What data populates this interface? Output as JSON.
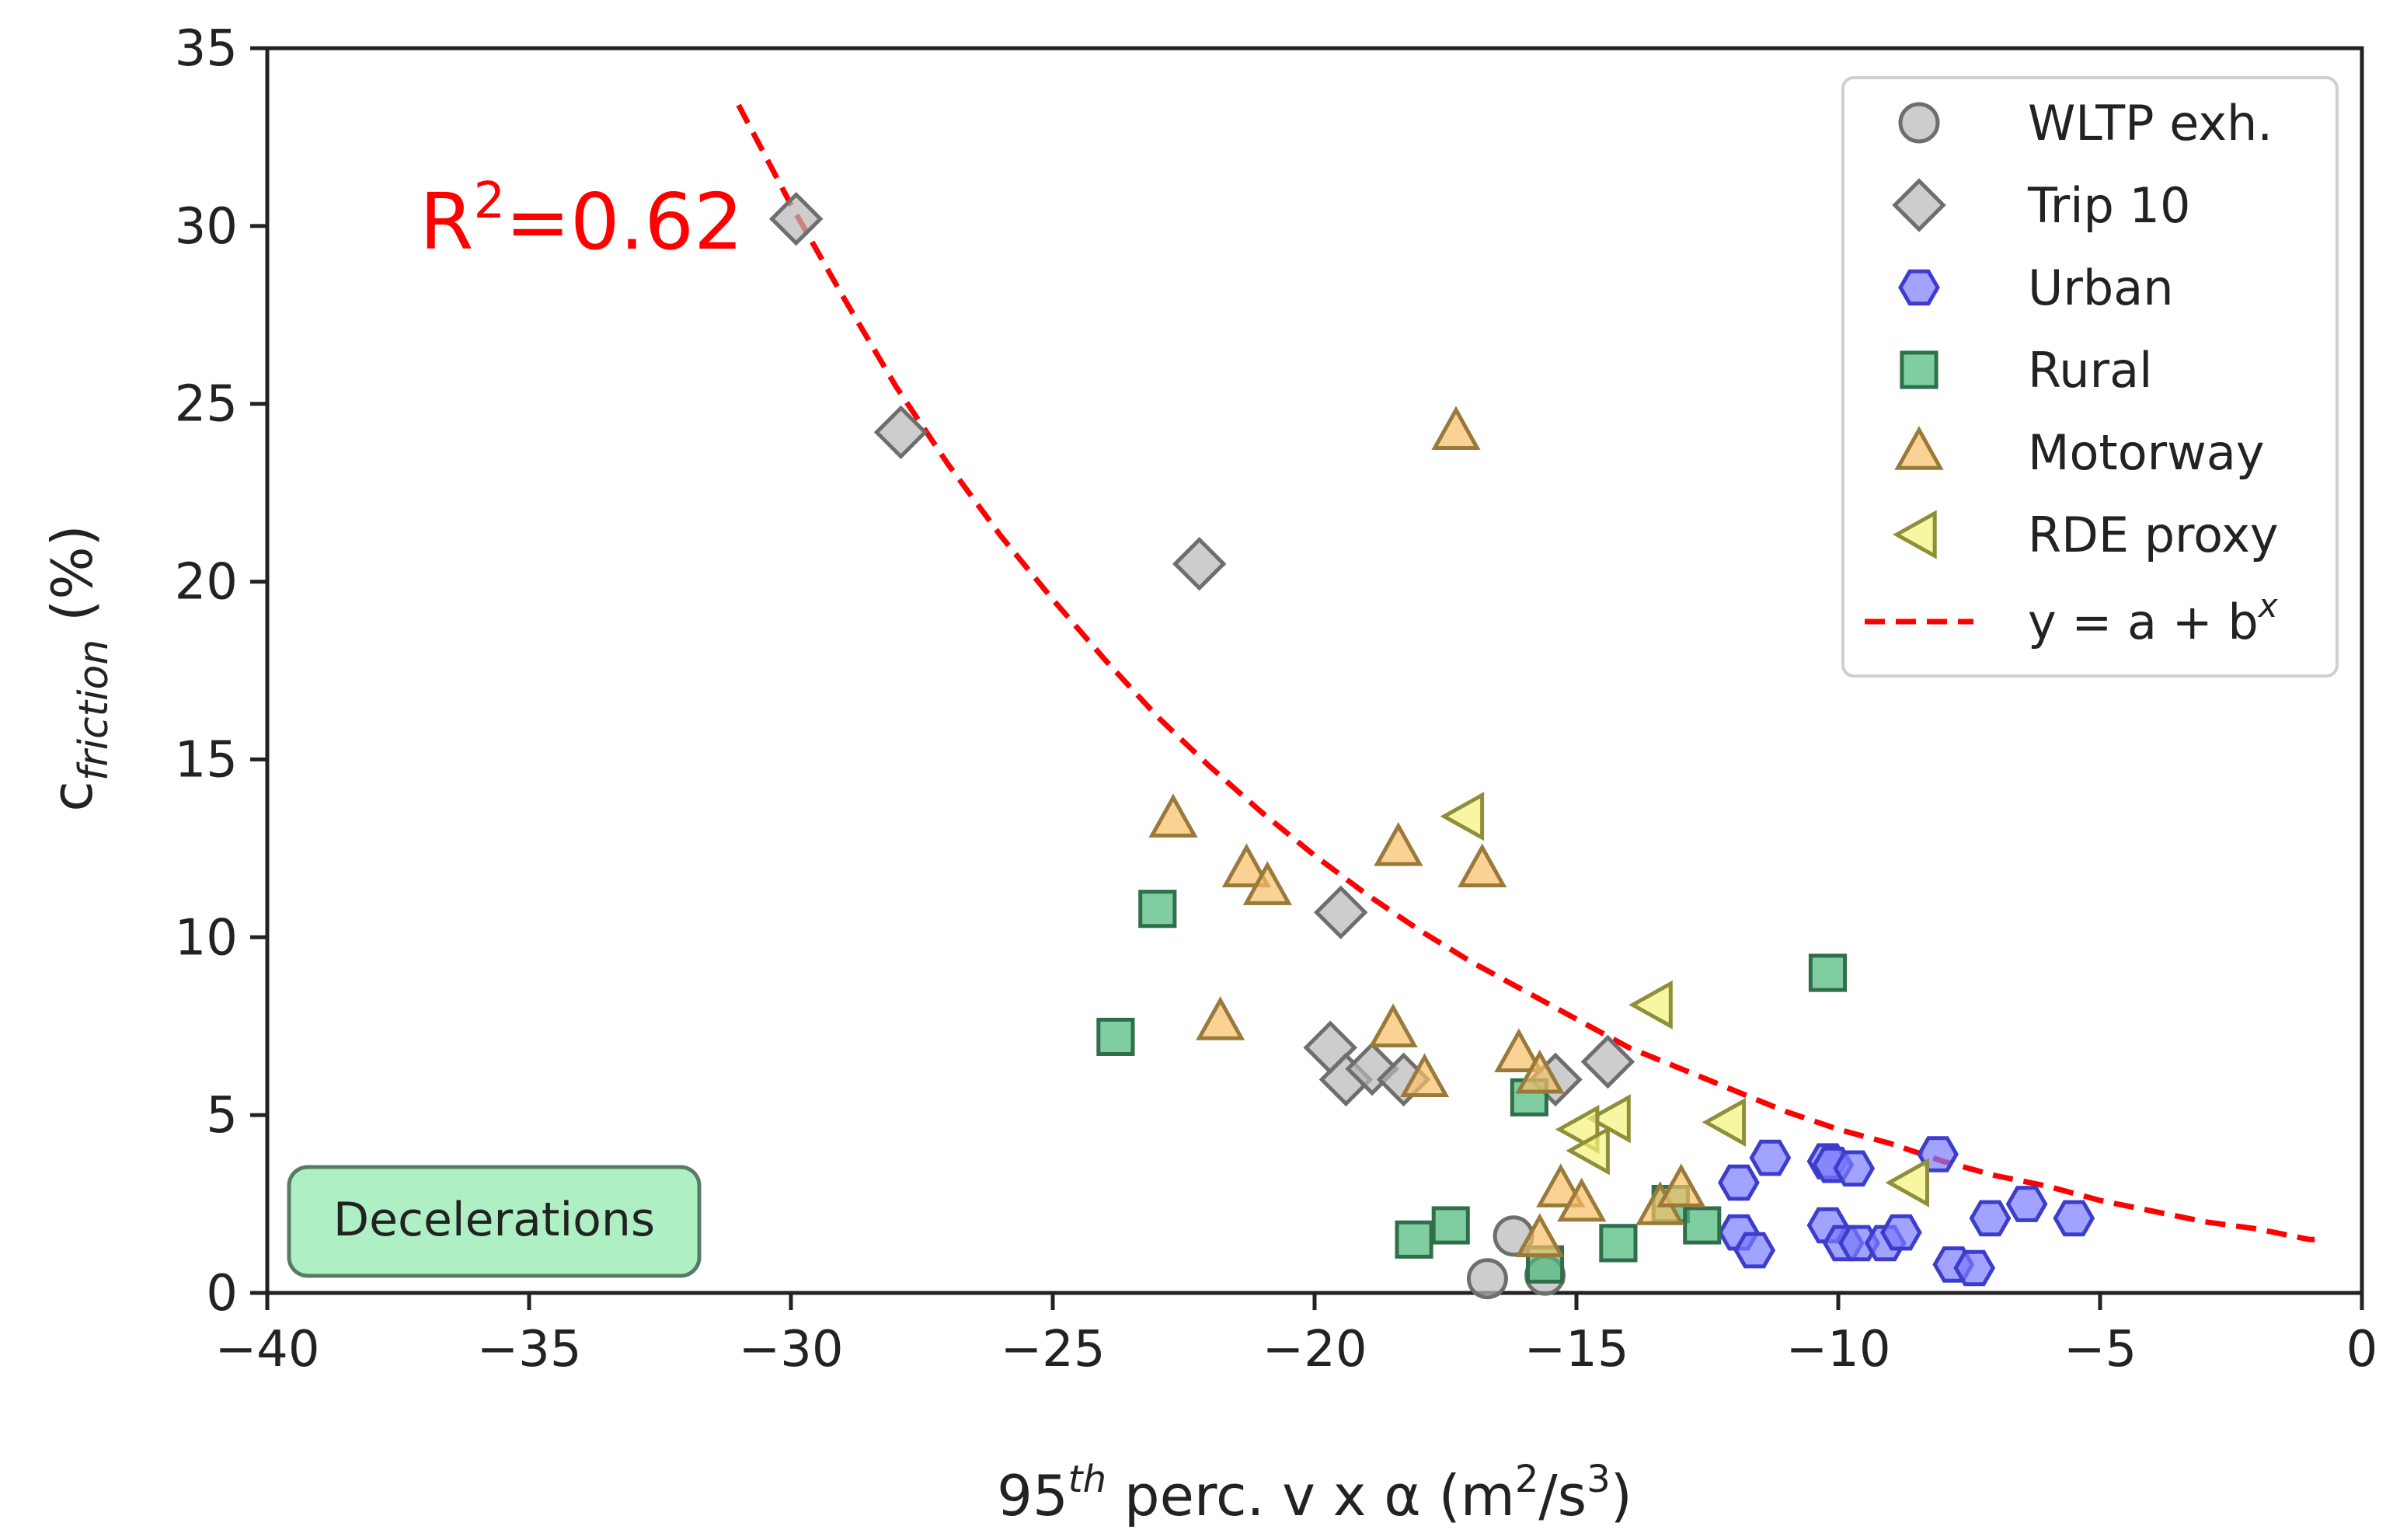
{
  "chart_data": {
    "type": "scatter",
    "xlabel": {
      "base": "95",
      "sup": "th",
      "rest": " perc. v x α (m",
      "sup2": "2",
      "mid": "/s",
      "sup3": "3",
      "end": ")"
    },
    "ylabel": {
      "main": "c",
      "sub": "friction",
      "rest": " (%)"
    },
    "xlim": [
      -40,
      0
    ],
    "ylim": [
      0,
      35
    ],
    "xticks": [
      -40,
      -35,
      -30,
      -25,
      -20,
      -15,
      -10,
      -5,
      0
    ],
    "xtick_labels": [
      "−40",
      "−35",
      "−30",
      "−25",
      "−20",
      "−15",
      "−10",
      "−5",
      "0"
    ],
    "yticks": [
      0,
      5,
      10,
      15,
      20,
      25,
      30,
      35
    ],
    "ytick_labels": [
      "0",
      "5",
      "10",
      "15",
      "20",
      "25",
      "30",
      "35"
    ],
    "grid": false,
    "legend_position": "top-right",
    "annotation": {
      "text_main": "R",
      "text_sup": "2",
      "text_rest": "=0.62",
      "color": "#ff0000"
    },
    "badge": {
      "text": "Deceleration s",
      "label": "Decelerations",
      "fill": "#aef0c4",
      "stroke": "#5a7a66"
    },
    "series": [
      {
        "name": "WLTP exh.",
        "marker": "circle",
        "fill": "#b8b8b8",
        "stroke": "#6e6e6e",
        "points": [
          [
            -16.7,
            0.4
          ],
          [
            -16.2,
            1.6
          ],
          [
            -15.6,
            0.5
          ]
        ]
      },
      {
        "name": "Trip 10",
        "marker": "diamond",
        "fill": "#b8b8b8",
        "stroke": "#6e6e6e",
        "points": [
          [
            -29.9,
            30.2
          ],
          [
            -27.9,
            24.2
          ],
          [
            -22.2,
            20.5
          ],
          [
            -19.5,
            10.7
          ],
          [
            -19.7,
            6.9
          ],
          [
            -19.4,
            6.0
          ],
          [
            -18.9,
            6.3
          ],
          [
            -18.3,
            6.0
          ],
          [
            -15.4,
            6.0
          ],
          [
            -14.4,
            6.5
          ]
        ]
      },
      {
        "name": "Urban",
        "marker": "hexagon",
        "fill": "#7b7bff",
        "stroke": "#3d3dcc",
        "points": [
          [
            -11.9,
            3.1
          ],
          [
            -11.3,
            3.8
          ],
          [
            -10.2,
            3.7
          ],
          [
            -10.1,
            3.6
          ],
          [
            -9.7,
            3.5
          ],
          [
            -8.1,
            3.9
          ],
          [
            -11.9,
            1.7
          ],
          [
            -11.6,
            1.2
          ],
          [
            -10.2,
            1.9
          ],
          [
            -9.9,
            1.4
          ],
          [
            -9.6,
            1.4
          ],
          [
            -9.1,
            1.4
          ],
          [
            -8.8,
            1.7
          ],
          [
            -7.8,
            0.8
          ],
          [
            -7.4,
            0.7
          ],
          [
            -7.1,
            2.1
          ],
          [
            -6.4,
            2.5
          ],
          [
            -5.5,
            2.1
          ]
        ]
      },
      {
        "name": "Rural",
        "marker": "square",
        "fill": "#4cb87a",
        "stroke": "#2f6f4a",
        "points": [
          [
            -23.8,
            7.2
          ],
          [
            -23.0,
            10.8
          ],
          [
            -18.1,
            1.5
          ],
          [
            -17.4,
            1.9
          ],
          [
            -15.9,
            5.5
          ],
          [
            -15.6,
            0.8
          ],
          [
            -14.2,
            1.4
          ],
          [
            -13.2,
            2.5
          ],
          [
            -12.6,
            1.9
          ],
          [
            -10.2,
            9.0
          ]
        ]
      },
      {
        "name": "Motorway",
        "marker": "triangle-up",
        "fill": "#f6bf66",
        "stroke": "#9a7a3a",
        "points": [
          [
            -22.7,
            13.3
          ],
          [
            -21.3,
            11.9
          ],
          [
            -20.9,
            11.4
          ],
          [
            -21.8,
            7.6
          ],
          [
            -18.4,
            12.5
          ],
          [
            -18.5,
            7.4
          ],
          [
            -17.9,
            6.0
          ],
          [
            -16.8,
            11.9
          ],
          [
            -17.3,
            24.2
          ],
          [
            -16.1,
            6.7
          ],
          [
            -15.7,
            6.1
          ],
          [
            -15.7,
            1.5
          ],
          [
            -15.3,
            2.9
          ],
          [
            -14.9,
            2.5
          ],
          [
            -13.4,
            2.4
          ],
          [
            -13.0,
            2.9
          ]
        ]
      },
      {
        "name": "RDE proxy",
        "marker": "triangle-left",
        "fill": "#f4f27a",
        "stroke": "#8f8f3a",
        "points": [
          [
            -17.1,
            13.4
          ],
          [
            -13.5,
            8.1
          ],
          [
            -14.3,
            4.9
          ],
          [
            -14.9,
            4.6
          ],
          [
            -14.7,
            4.0
          ],
          [
            -12.1,
            4.8
          ],
          [
            -8.6,
            3.1
          ]
        ]
      }
    ],
    "fit": {
      "name": "y = a + b",
      "name_sup": "x",
      "color": "#ff0000",
      "points": [
        [
          -31.0,
          33.4
        ],
        [
          -30.0,
          30.6
        ],
        [
          -29.0,
          28.0
        ],
        [
          -28.0,
          25.5
        ],
        [
          -27.0,
          23.3
        ],
        [
          -26.0,
          21.3
        ],
        [
          -25.0,
          19.5
        ],
        [
          -24.0,
          17.8
        ],
        [
          -23.0,
          16.2
        ],
        [
          -22.0,
          14.8
        ],
        [
          -21.0,
          13.5
        ],
        [
          -20.0,
          12.3
        ],
        [
          -19.0,
          11.2
        ],
        [
          -18.0,
          10.2
        ],
        [
          -17.0,
          9.3
        ],
        [
          -16.0,
          8.5
        ],
        [
          -15.0,
          7.7
        ],
        [
          -14.0,
          6.9
        ],
        [
          -13.0,
          6.3
        ],
        [
          -12.0,
          5.7
        ],
        [
          -11.0,
          5.1
        ],
        [
          -10.0,
          4.6
        ],
        [
          -9.0,
          4.2
        ],
        [
          -8.0,
          3.7
        ],
        [
          -7.0,
          3.3
        ],
        [
          -6.0,
          3.0
        ],
        [
          -5.0,
          2.6
        ],
        [
          -4.0,
          2.3
        ],
        [
          -3.0,
          2.0
        ],
        [
          -2.0,
          1.8
        ],
        [
          -1.0,
          1.5
        ],
        [
          -0.9,
          1.5
        ]
      ]
    }
  }
}
